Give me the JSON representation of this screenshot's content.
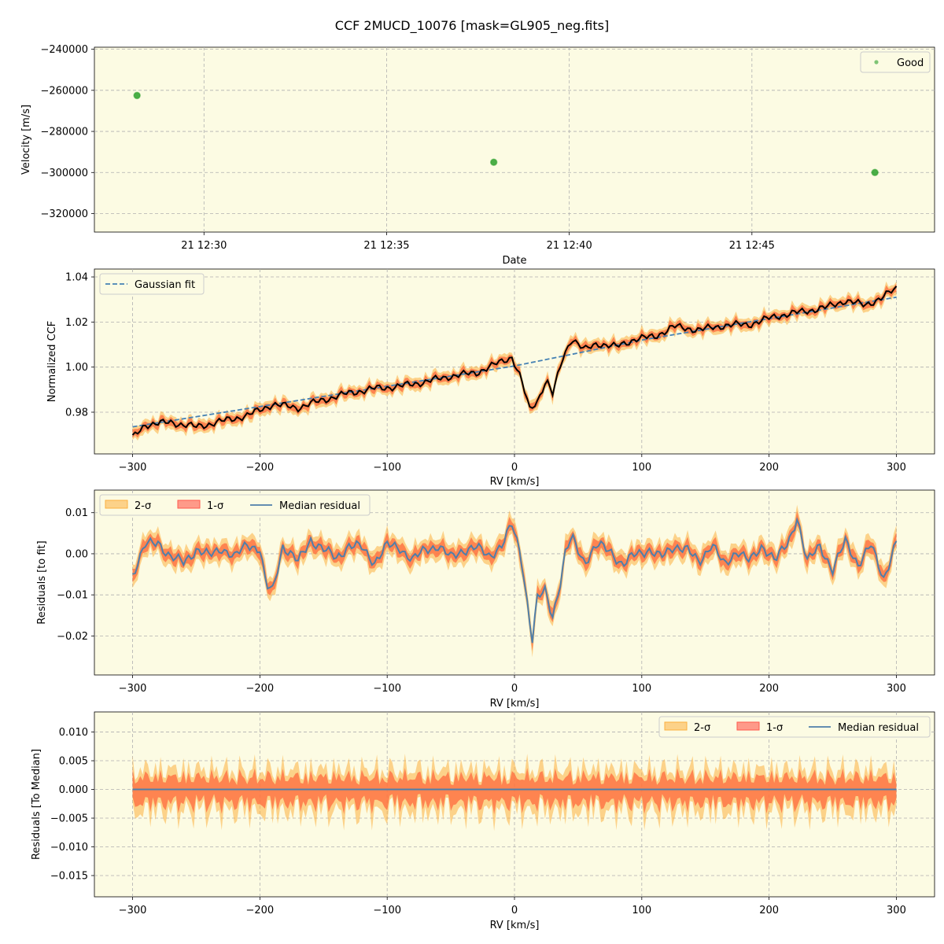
{
  "figure": {
    "title": "CCF 2MUCD_10076 [mask=GL905_neg.fits]"
  },
  "chart_data": [
    {
      "type": "scatter",
      "xlabel": "Date",
      "ylabel": "Velocity [m/s]",
      "xlim": [
        "21 12:27:00",
        "21 12:50:00"
      ],
      "ylim": [
        -329000,
        -239000
      ],
      "xticks": [
        {
          "t": "21 12:30:00",
          "label": "21 12:30"
        },
        {
          "t": "21 12:35:00",
          "label": "21 12:35"
        },
        {
          "t": "21 12:40:00",
          "label": "21 12:40"
        },
        {
          "t": "21 12:45:00",
          "label": "21 12:45"
        }
      ],
      "yticks": [
        -320000,
        -300000,
        -280000,
        -260000,
        -240000
      ],
      "ytick_labels": [
        "−320000",
        "−300000",
        "−280000",
        "−260000",
        "−240000"
      ],
      "series": [
        {
          "name": "Good",
          "color": "#2ca02c",
          "points": [
            {
              "t": "21 12:28:10",
              "y": -262500
            },
            {
              "t": "21 12:37:56",
              "y": -295000
            },
            {
              "t": "21 12:48:22",
              "y": -300000
            }
          ]
        }
      ],
      "legend": {
        "position": "upper-right",
        "entries": [
          "Good"
        ]
      },
      "grid": true,
      "background": "#fcfbe3"
    },
    {
      "type": "line",
      "xlabel": "RV [km/s]",
      "ylabel": "Normalized CCF",
      "xlim": [
        -330,
        330
      ],
      "ylim": [
        0.9615,
        1.0435
      ],
      "xticks": [
        -300,
        -200,
        -100,
        0,
        100,
        200,
        300
      ],
      "xtick_labels": [
        "−300",
        "−200",
        "−100",
        "0",
        "100",
        "200",
        "300"
      ],
      "yticks": [
        0.98,
        1.0,
        1.02,
        1.04
      ],
      "ytick_labels": [
        "0.98",
        "1.00",
        "1.02",
        "1.04"
      ],
      "series": [
        {
          "name": "Gaussian fit",
          "style": "dashed",
          "color": "#4682b4",
          "points": [
            [
              -300,
              0.9735
            ],
            [
              -200,
              0.9825
            ],
            [
              -100,
              0.9915
            ],
            [
              0,
              1.0005
            ],
            [
              100,
              1.012
            ],
            [
              200,
              1.0215
            ],
            [
              300,
              1.031
            ]
          ]
        },
        {
          "name": "CCF",
          "style": "solid",
          "color": "#000000",
          "points": [
            [
              -300,
              0.9685
            ],
            [
              -290,
              0.9745
            ],
            [
              -270,
              0.9755
            ],
            [
              -250,
              0.9735
            ],
            [
              -230,
              0.976
            ],
            [
              -210,
              0.9785
            ],
            [
              -190,
              0.9835
            ],
            [
              -170,
              0.982
            ],
            [
              -150,
              0.9855
            ],
            [
              -130,
              0.9885
            ],
            [
              -110,
              0.9905
            ],
            [
              -90,
              0.9915
            ],
            [
              -70,
              0.9935
            ],
            [
              -50,
              0.996
            ],
            [
              -30,
              0.9975
            ],
            [
              -10,
              1.0025
            ],
            [
              -2,
              1.0045
            ],
            [
              5,
              0.995
            ],
            [
              12,
              0.981
            ],
            [
              18,
              0.985
            ],
            [
              25,
              0.9945
            ],
            [
              30,
              0.988
            ],
            [
              38,
              1.004
            ],
            [
              45,
              1.013
            ],
            [
              55,
              1.0075
            ],
            [
              65,
              1.0105
            ],
            [
              80,
              1.009
            ],
            [
              95,
              1.0125
            ],
            [
              110,
              1.0135
            ],
            [
              125,
              1.018
            ],
            [
              145,
              1.0165
            ],
            [
              165,
              1.0185
            ],
            [
              185,
              1.019
            ],
            [
              205,
              1.0225
            ],
            [
              225,
              1.0245
            ],
            [
              245,
              1.0265
            ],
            [
              260,
              1.0295
            ],
            [
              275,
              1.0275
            ],
            [
              288,
              1.0305
            ],
            [
              300,
              1.035
            ]
          ]
        }
      ],
      "band_colors": {
        "two_sigma": "#fbb040",
        "one_sigma": "#ff6a3d"
      },
      "legend": {
        "position": "upper-left",
        "entries": [
          "Gaussian fit"
        ]
      },
      "grid": true,
      "background": "#fcfbe3"
    },
    {
      "type": "line",
      "xlabel": "RV [km/s]",
      "ylabel": "Residuals [to fit]",
      "xlim": [
        -330,
        330
      ],
      "ylim": [
        -0.0295,
        0.0155
      ],
      "xticks": [
        -300,
        -200,
        -100,
        0,
        100,
        200,
        300
      ],
      "xtick_labels": [
        "−300",
        "−200",
        "−100",
        "0",
        "100",
        "200",
        "300"
      ],
      "yticks": [
        -0.02,
        -0.01,
        0.0,
        0.01
      ],
      "ytick_labels": [
        "−0.02",
        "−0.01",
        "0.00",
        "0.01"
      ],
      "series": [
        {
          "name": "Median residual",
          "style": "solid",
          "color": "#4f7faa",
          "points": [
            [
              -300,
              -0.005
            ],
            [
              -290,
              0.002
            ],
            [
              -280,
              0.003
            ],
            [
              -270,
              -0.001
            ],
            [
              -260,
              -0.002
            ],
            [
              -250,
              0.001
            ],
            [
              -240,
              -0.0005
            ],
            [
              -230,
              0.0015
            ],
            [
              -220,
              -0.001
            ],
            [
              -210,
              0.0025
            ],
            [
              -200,
              0.001
            ],
            [
              -195,
              -0.008
            ],
            [
              -190,
              -0.009
            ],
            [
              -182,
              0.002
            ],
            [
              -170,
              -0.002
            ],
            [
              -160,
              0.0035
            ],
            [
              -150,
              0.001
            ],
            [
              -140,
              -0.001
            ],
            [
              -130,
              0.002
            ],
            [
              -120,
              0.0015
            ],
            [
              -110,
              -0.002
            ],
            [
              -100,
              0.002
            ],
            [
              -90,
              0.0015
            ],
            [
              -80,
              -0.0015
            ],
            [
              -70,
              0.001
            ],
            [
              -60,
              0.002
            ],
            [
              -50,
              -0.001
            ],
            [
              -40,
              0.001
            ],
            [
              -30,
              0.0015
            ],
            [
              -20,
              -0.0005
            ],
            [
              -10,
              0.002
            ],
            [
              -2,
              0.007
            ],
            [
              5,
              0.0
            ],
            [
              8,
              -0.007
            ],
            [
              14,
              -0.021
            ],
            [
              18,
              -0.011
            ],
            [
              24,
              -0.009
            ],
            [
              30,
              -0.015
            ],
            [
              36,
              -0.007
            ],
            [
              40,
              0.0
            ],
            [
              45,
              0.004
            ],
            [
              55,
              -0.002
            ],
            [
              65,
              0.002
            ],
            [
              75,
              0.001
            ],
            [
              85,
              -0.003
            ],
            [
              95,
              0.0
            ],
            [
              105,
              0.001
            ],
            [
              115,
              -0.001
            ],
            [
              125,
              0.002
            ],
            [
              135,
              0.001
            ],
            [
              145,
              -0.002
            ],
            [
              155,
              0.0025
            ],
            [
              165,
              -0.003
            ],
            [
              175,
              0.001
            ],
            [
              185,
              -0.002
            ],
            [
              195,
              0.002
            ],
            [
              205,
              -0.0015
            ],
            [
              215,
              0.0025
            ],
            [
              222,
              0.009
            ],
            [
              230,
              -0.002
            ],
            [
              240,
              0.002
            ],
            [
              250,
              -0.004
            ],
            [
              260,
              0.003
            ],
            [
              270,
              -0.0025
            ],
            [
              280,
              0.002
            ],
            [
              290,
              -0.006
            ],
            [
              300,
              0.003
            ]
          ]
        }
      ],
      "legend": {
        "position": "upper-left",
        "entries": [
          "2-σ",
          "1-σ",
          "Median residual"
        ]
      },
      "band_colors": {
        "two_sigma": "#fbb040",
        "one_sigma": "#ff6a3d"
      },
      "grid": true,
      "background": "#fcfbe3"
    },
    {
      "type": "line",
      "xlabel": "RV [km/s]",
      "ylabel": "Residuals [To Median]",
      "xlim": [
        -330,
        330
      ],
      "ylim": [
        -0.0187,
        0.0135
      ],
      "xticks": [
        -300,
        -200,
        -100,
        0,
        100,
        200,
        300
      ],
      "xtick_labels": [
        "−300",
        "−200",
        "−100",
        "0",
        "100",
        "200",
        "300"
      ],
      "yticks": [
        -0.015,
        -0.01,
        -0.005,
        0.0,
        0.005,
        0.01
      ],
      "ytick_labels": [
        "−0.015",
        "−0.010",
        "−0.005",
        "0.000",
        "0.005",
        "0.010"
      ],
      "series": [
        {
          "name": "Median residual",
          "style": "solid",
          "color": "#4f7faa",
          "points": [
            [
              -300,
              0.0
            ],
            [
              300,
              0.0
            ]
          ]
        }
      ],
      "band_extent": {
        "one_sigma": 0.003,
        "two_sigma": 0.005
      },
      "legend": {
        "position": "upper-right",
        "entries": [
          "2-σ",
          "1-σ",
          "Median residual"
        ]
      },
      "band_colors": {
        "two_sigma": "#fbb040",
        "one_sigma": "#ff6a3d"
      },
      "grid": true,
      "background": "#fcfbe3"
    }
  ]
}
